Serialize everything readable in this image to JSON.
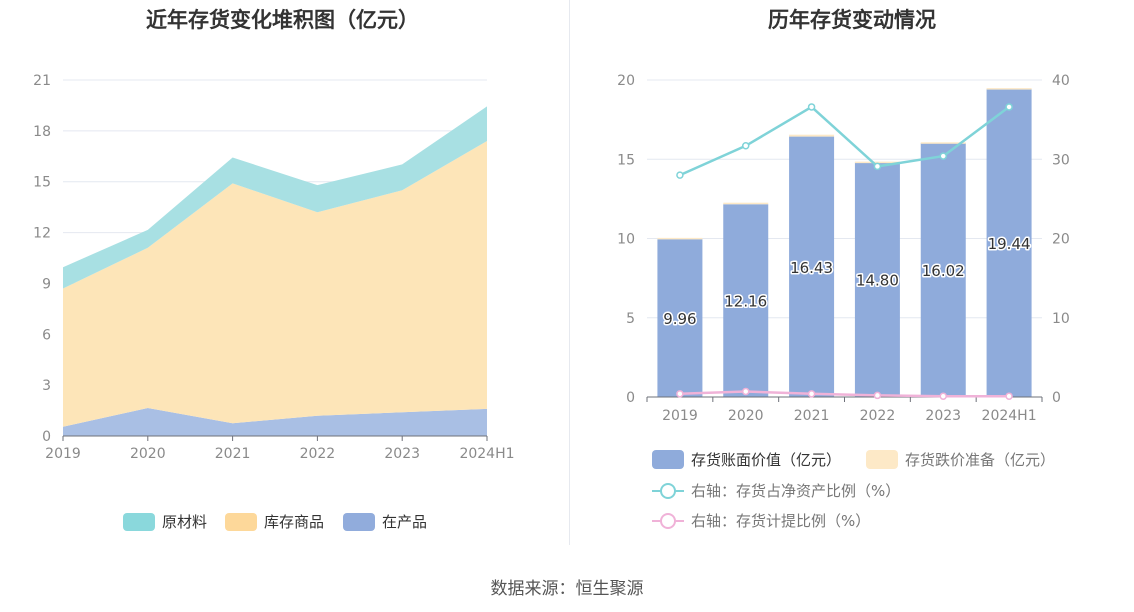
{
  "source": "数据来源：恒生聚源",
  "chart_data": [
    {
      "type": "area",
      "stacked": true,
      "title": "近年存货变化堆积图（亿元）",
      "categories": [
        "2019",
        "2020",
        "2021",
        "2022",
        "2023",
        "2024H1"
      ],
      "ylim": [
        0,
        21
      ],
      "yticks": [
        0,
        3,
        6,
        9,
        12,
        15,
        18,
        21
      ],
      "grid": true,
      "legend_position": "bottom",
      "series": [
        {
          "name": "在产品",
          "values": [
            0.55,
            1.65,
            0.75,
            1.2,
            1.4,
            1.6
          ],
          "color": "#a9bfe4"
        },
        {
          "name": "库存商品",
          "values": [
            8.15,
            9.45,
            14.15,
            12.0,
            13.1,
            15.8
          ],
          "color": "#fde5b8"
        },
        {
          "name": "原材料",
          "values": [
            1.26,
            1.06,
            1.53,
            1.6,
            1.52,
            2.04
          ],
          "color": "#a8e0e3"
        }
      ],
      "legend": [
        {
          "name": "原材料",
          "color": "#8ad8dc"
        },
        {
          "name": "库存商品",
          "color": "#fdd89a"
        },
        {
          "name": "在产品",
          "color": "#91acdc"
        }
      ]
    },
    {
      "type": "bar",
      "title": "历年存货变动情况",
      "categories": [
        "2019",
        "2020",
        "2021",
        "2022",
        "2023",
        "2024H1"
      ],
      "ylim": [
        0,
        20
      ],
      "yticks": [
        0,
        5,
        10,
        15,
        20
      ],
      "y2lim": [
        0,
        40
      ],
      "y2ticks": [
        0,
        10,
        20,
        30,
        40
      ],
      "grid": true,
      "legend_position": "bottom",
      "series": [
        {
          "name": "存货账面价值（亿元）",
          "kind": "bar",
          "values": [
            9.96,
            12.16,
            16.43,
            14.8,
            16.02,
            19.44
          ],
          "labels": [
            "9.96",
            "12.16",
            "16.43",
            "14.80",
            "16.02",
            "19.44"
          ],
          "color": "#8fabdb"
        },
        {
          "name": "存货跌价准备（亿元）",
          "kind": "bar-stacked",
          "values": [
            0.08,
            0.1,
            0.12,
            0.05,
            0.05,
            0.05
          ],
          "color": "#fde9c7"
        },
        {
          "name": "右轴：存货占净资产比例（%）",
          "kind": "line",
          "axis": "right",
          "values": [
            28.0,
            31.7,
            36.6,
            29.1,
            30.4,
            36.6
          ],
          "color": "#7fd3d8"
        },
        {
          "name": "右轴：存货计提比例（%）",
          "kind": "line",
          "axis": "right",
          "values": [
            0.4,
            0.7,
            0.4,
            0.2,
            0.1,
            0.1
          ],
          "color": "#f0b2d8"
        }
      ]
    }
  ]
}
